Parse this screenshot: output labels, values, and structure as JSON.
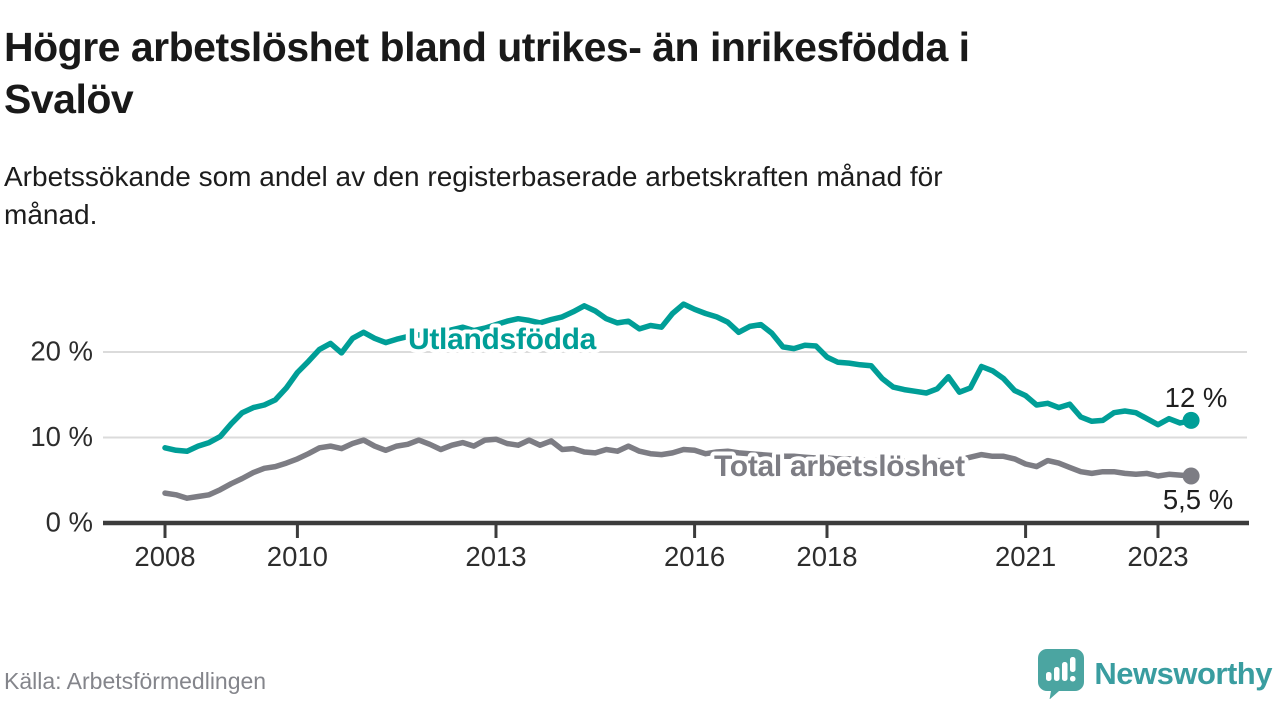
{
  "header": {
    "title": "Högre arbetslöshet bland utrikes- än inrikesfödda i\nSvalöv",
    "subtitle": "Arbetssökande som andel av den registerbaserade arbetskraften månad för\nmånad."
  },
  "footer": {
    "source": "Källa: Arbetsförmedlingen",
    "logo_text": "Newsworthy",
    "logo_icon": "speech-bubble-bar-chart-exclamation",
    "logo_color": "#4ba5a1"
  },
  "chart_data": {
    "type": "line",
    "title": "Högre arbetslöshet bland utrikes- än inrikesfödda i Svalöv",
    "subtitle": "Arbetssökande som andel av den registerbaserade arbetskraften månad för månad.",
    "unit": "%",
    "x_start_year": 2008.0,
    "x_step_months": 2,
    "x_end_year": 2023.5,
    "xlim": [
      2007.05,
      2024.4
    ],
    "ylim": [
      0,
      27
    ],
    "grid": "horizontal",
    "legend_position": "inline-labels-on-lines",
    "y_ticks": [
      {
        "value": 0,
        "label": "0 %"
      },
      {
        "value": 10,
        "label": "10 %"
      },
      {
        "value": 20,
        "label": "20 %"
      }
    ],
    "x_ticks": [
      {
        "year": 2008,
        "label": "2008"
      },
      {
        "year": 2010,
        "label": "2010"
      },
      {
        "year": 2013,
        "label": "2013"
      },
      {
        "year": 2016,
        "label": "2016"
      },
      {
        "year": 2018,
        "label": "2018"
      },
      {
        "year": 2021,
        "label": "2021"
      },
      {
        "year": 2023,
        "label": "2023"
      }
    ],
    "series": [
      {
        "name": "Utlandsfödda",
        "color": "#009e97",
        "end_value": 12,
        "end_label": "12 %",
        "values": [
          8.8,
          8.5,
          8.4,
          9.0,
          9.4,
          10.1,
          11.6,
          12.9,
          13.5,
          13.8,
          14.4,
          15.8,
          17.6,
          18.9,
          20.3,
          21.0,
          19.9,
          21.6,
          22.3,
          21.6,
          21.1,
          21.5,
          21.8,
          22.0,
          21.8,
          22.2,
          22.6,
          22.9,
          22.5,
          22.8,
          23.2,
          23.6,
          23.9,
          23.7,
          23.4,
          23.8,
          24.1,
          24.7,
          25.4,
          24.8,
          23.9,
          23.4,
          23.6,
          22.7,
          23.1,
          22.9,
          24.5,
          25.6,
          25.0,
          24.5,
          24.1,
          23.5,
          22.3,
          23.0,
          23.2,
          22.2,
          20.6,
          20.4,
          20.8,
          20.7,
          19.4,
          18.8,
          18.7,
          18.5,
          18.4,
          16.9,
          15.9,
          15.6,
          15.4,
          15.2,
          15.7,
          17.1,
          15.3,
          15.8,
          18.3,
          17.8,
          16.9,
          15.5,
          14.9,
          13.8,
          14.0,
          13.5,
          13.9,
          12.4,
          11.9,
          12.0,
          12.9,
          13.1,
          12.9,
          12.2,
          11.5,
          12.2,
          11.7,
          12.0
        ]
      },
      {
        "name": "Total arbetslöshet",
        "color": "#7d7d84",
        "end_value": 5.5,
        "end_label": "5,5 %",
        "values": [
          3.5,
          3.3,
          2.9,
          3.1,
          3.3,
          3.9,
          4.6,
          5.2,
          5.9,
          6.4,
          6.6,
          7.0,
          7.5,
          8.1,
          8.8,
          9.0,
          8.7,
          9.3,
          9.7,
          9.0,
          8.5,
          9.0,
          9.2,
          9.7,
          9.2,
          8.6,
          9.1,
          9.4,
          9.0,
          9.7,
          9.8,
          9.3,
          9.1,
          9.7,
          9.1,
          9.6,
          8.6,
          8.7,
          8.3,
          8.2,
          8.6,
          8.4,
          9.0,
          8.4,
          8.1,
          8.0,
          8.2,
          8.6,
          8.5,
          8.1,
          8.3,
          8.4,
          8.2,
          8.1,
          8.0,
          7.9,
          7.8,
          7.8,
          7.7,
          7.6,
          7.6,
          7.5,
          7.5,
          7.4,
          7.4,
          7.3,
          7.3,
          7.2,
          7.2,
          7.2,
          7.3,
          7.3,
          7.4,
          7.7,
          8.0,
          7.8,
          7.8,
          7.5,
          6.9,
          6.6,
          7.3,
          7.0,
          6.5,
          6.0,
          5.8,
          6.0,
          6.0,
          5.8,
          5.7,
          5.8,
          5.5,
          5.7,
          5.6,
          5.5
        ]
      }
    ]
  }
}
